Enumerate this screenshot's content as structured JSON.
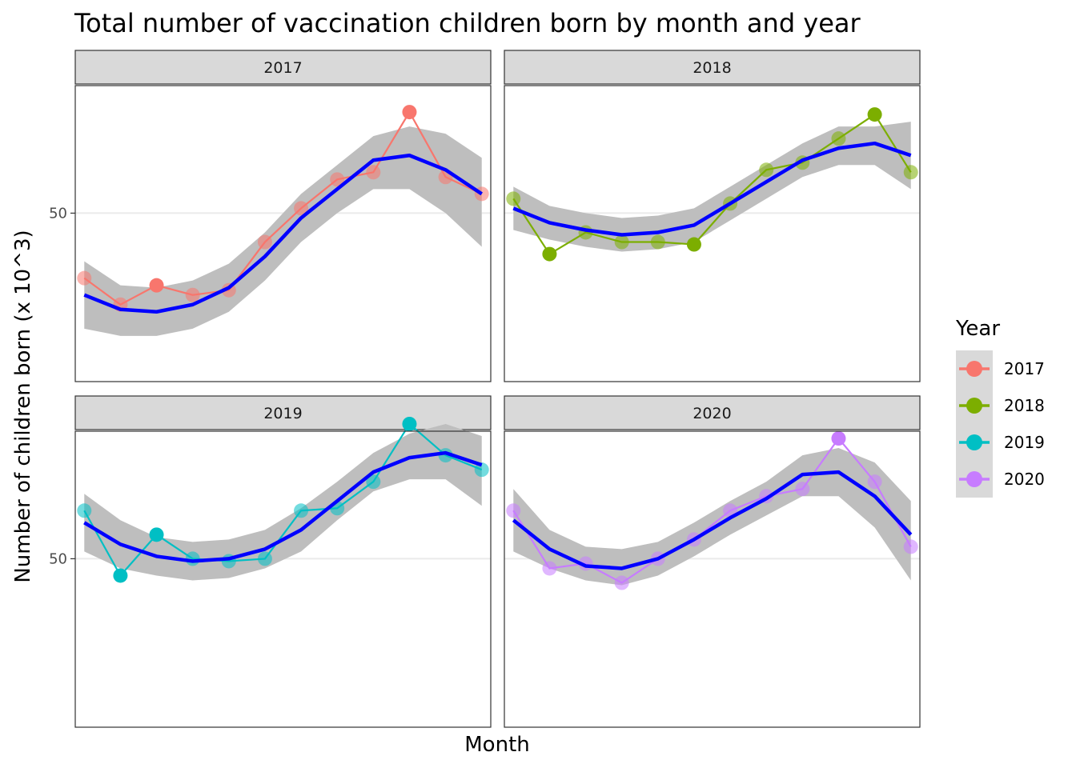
{
  "chart_data": {
    "type": "line",
    "title": "Total number of vaccination children born by month and year",
    "xlabel": "Month",
    "ylabel": "Number of children born (x 10^3)",
    "x": [
      1,
      2,
      3,
      4,
      5,
      6,
      7,
      8,
      9,
      10,
      11,
      12
    ],
    "xlim": [
      0.75,
      12.25
    ],
    "ylim": [
      43,
      55.3
    ],
    "y_ticks": [
      {
        "value": 50,
        "label": "50"
      }
    ],
    "grid": "major-y",
    "smoother": {
      "method": "loess",
      "color": "#0000ff",
      "band_color": "#bebebe"
    },
    "legend": {
      "title": "Year",
      "position": "right"
    },
    "series": [
      {
        "name": "2017",
        "color": "#f8766d",
        "values": [
          47.3,
          46.2,
          47.0,
          46.6,
          46.8,
          48.8,
          50.2,
          51.4,
          51.7,
          54.2,
          51.5,
          50.8
        ]
      },
      {
        "name": "2018",
        "color": "#7cae00",
        "values": [
          50.6,
          48.3,
          49.2,
          48.8,
          48.8,
          48.7,
          50.4,
          51.8,
          52.1,
          53.1,
          54.1,
          51.7
        ]
      },
      {
        "name": "2019",
        "color": "#00bfc4",
        "values": [
          52.0,
          49.3,
          51.0,
          50.0,
          49.9,
          50.0,
          52.0,
          52.1,
          53.2,
          55.6,
          54.3,
          53.7
        ]
      },
      {
        "name": "2020",
        "color": "#c77cff",
        "values": [
          52.0,
          49.6,
          49.8,
          49.0,
          50.0,
          50.8,
          52.0,
          52.6,
          52.9,
          55.0,
          53.2,
          50.5
        ]
      }
    ],
    "smooth": {
      "2017": {
        "fit": [
          46.6,
          46.0,
          45.9,
          46.2,
          46.9,
          48.2,
          49.8,
          51.0,
          52.2,
          52.4,
          51.8,
          50.8
        ],
        "lower": [
          45.2,
          44.9,
          44.9,
          45.2,
          45.9,
          47.2,
          48.8,
          50.0,
          51.0,
          51.0,
          50.0,
          48.6
        ],
        "upper": [
          48.0,
          47.0,
          46.9,
          47.2,
          47.9,
          49.2,
          50.8,
          52.0,
          53.2,
          53.6,
          53.3,
          52.3
        ]
      },
      "2018": {
        "fit": [
          50.2,
          49.6,
          49.3,
          49.1,
          49.2,
          49.5,
          50.4,
          51.3,
          52.2,
          52.7,
          52.9,
          52.4
        ],
        "lower": [
          49.3,
          48.9,
          48.6,
          48.4,
          48.5,
          48.8,
          49.7,
          50.6,
          51.5,
          52.0,
          52.0,
          51.0
        ],
        "upper": [
          51.1,
          50.3,
          50.0,
          49.8,
          49.9,
          50.2,
          51.1,
          52.0,
          52.9,
          53.6,
          53.6,
          53.8
        ]
      },
      "2019": {
        "fit": [
          51.5,
          50.6,
          50.1,
          49.9,
          50.0,
          50.4,
          51.2,
          52.4,
          53.6,
          54.2,
          54.4,
          53.9
        ],
        "lower": [
          50.3,
          49.6,
          49.3,
          49.1,
          49.2,
          49.6,
          50.3,
          51.6,
          52.8,
          53.3,
          53.3,
          52.2
        ],
        "upper": [
          52.7,
          51.6,
          50.9,
          50.7,
          50.8,
          51.2,
          52.1,
          53.2,
          54.4,
          55.2,
          55.6,
          55.1
        ]
      },
      "2020": {
        "fit": [
          51.6,
          50.4,
          49.7,
          49.6,
          50.0,
          50.8,
          51.7,
          52.5,
          53.5,
          53.6,
          52.6,
          51.0
        ],
        "lower": [
          50.3,
          49.6,
          49.1,
          48.9,
          49.3,
          50.1,
          51.0,
          51.8,
          52.6,
          52.6,
          51.3,
          49.1
        ],
        "upper": [
          52.9,
          51.2,
          50.5,
          50.4,
          50.7,
          51.5,
          52.4,
          53.2,
          54.3,
          54.6,
          54.0,
          52.4
        ]
      }
    }
  }
}
